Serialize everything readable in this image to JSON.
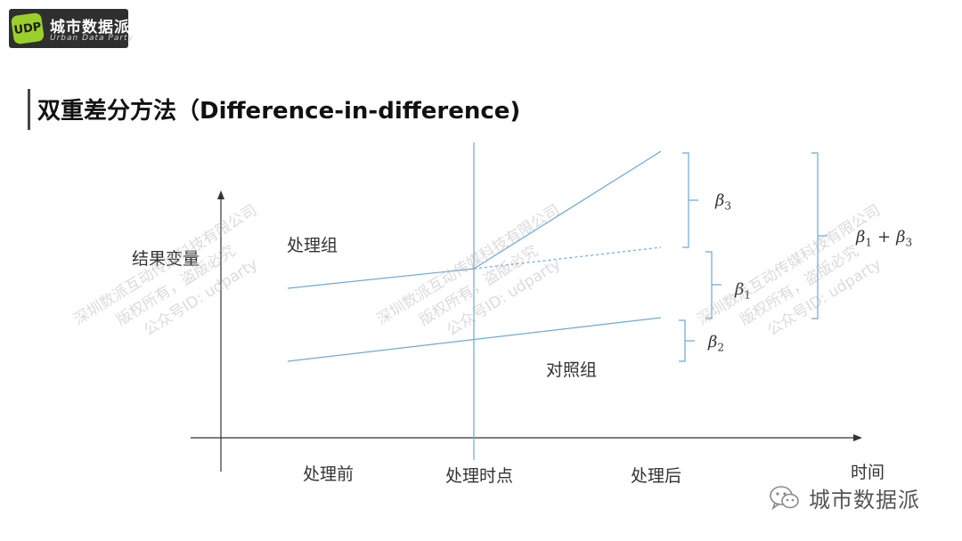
{
  "brand": {
    "logo_mark": "UDP",
    "name": "城市数据派",
    "subtitle": "Urban Data Party"
  },
  "slide": {
    "title": "双重差分方法（Difference-in-difference)"
  },
  "diagram": {
    "y_axis_label": "结果变量",
    "x_axis_label": "时间",
    "treatment_label": "处理组",
    "control_label": "对照组",
    "x_ticks": [
      "处理前",
      "处理时点",
      "处理后"
    ],
    "beta3": "β",
    "beta3_sub": "3",
    "beta1": "β",
    "beta1_sub": "1",
    "beta2": "β",
    "beta2_sub": "2",
    "beta13_a": "β",
    "beta13_a_sub": "1",
    "beta13_plus": "+",
    "beta13_b": "β",
    "beta13_b_sub": "3"
  },
  "watermark": {
    "line1": "深圳数派互动传媒科技有限公司",
    "line2": "版权所有，盗版必究",
    "line3": "公众号ID: udparty"
  },
  "footer": {
    "icon": "wechat-icon",
    "name": "城市数据派"
  },
  "colors": {
    "line": "#6fa8d6",
    "axis": "#333333",
    "logo_bg": "#2f2f2f",
    "logo_accent": "#9bd02a"
  }
}
